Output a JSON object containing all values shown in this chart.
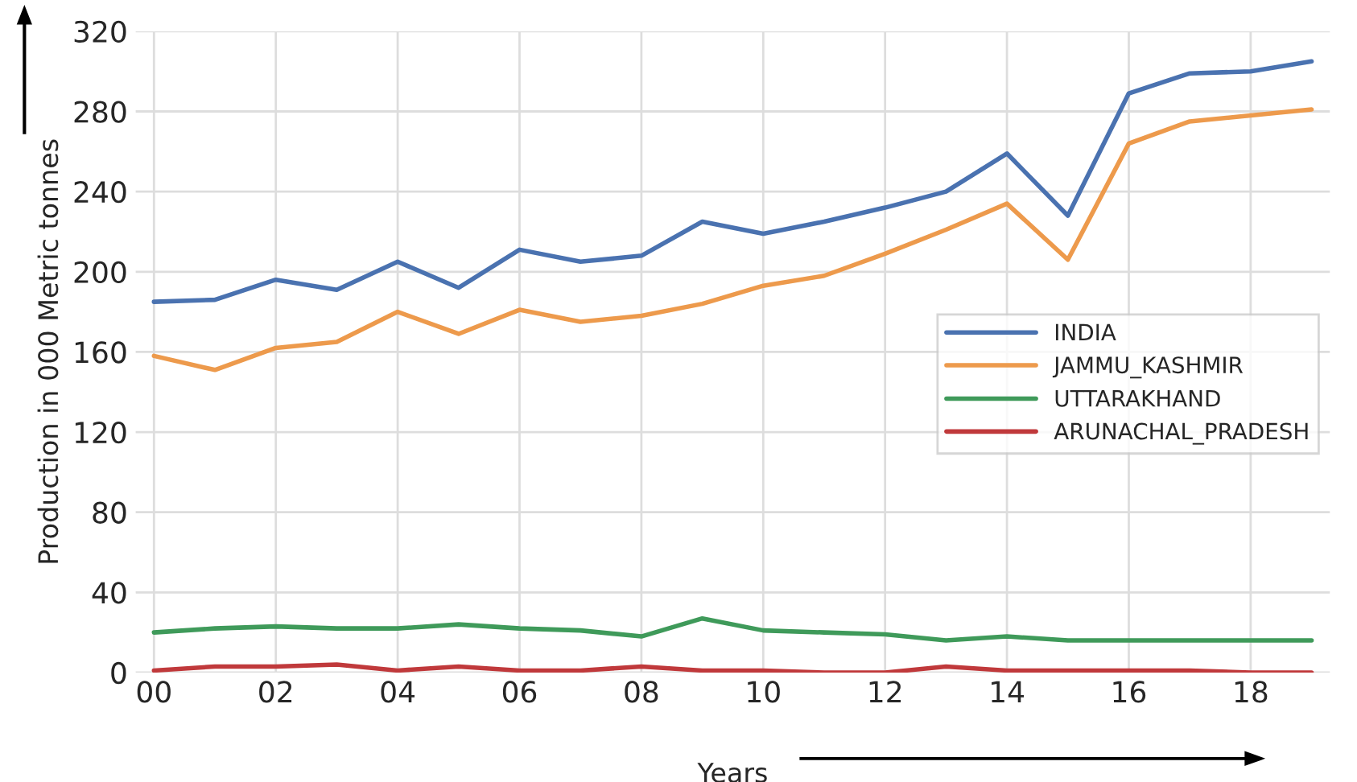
{
  "chart_data": {
    "type": "line",
    "xlabel": "Years",
    "ylabel": "Production in 000 Metric tonnes",
    "x": [
      0,
      1,
      2,
      3,
      4,
      5,
      6,
      7,
      8,
      9,
      10,
      11,
      12,
      13,
      14,
      15,
      16,
      17,
      18,
      19
    ],
    "series": [
      {
        "name": "INDIA",
        "color": "#4a72b0",
        "values": [
          185,
          186,
          196,
          191,
          205,
          192,
          211,
          205,
          208,
          225,
          219,
          225,
          232,
          240,
          259,
          228,
          289,
          299,
          300,
          305
        ]
      },
      {
        "name": "JAMMU_KASHMIR",
        "color": "#ed9a4c",
        "values": [
          158,
          151,
          162,
          165,
          180,
          169,
          181,
          175,
          178,
          184,
          193,
          198,
          209,
          221,
          234,
          206,
          264,
          275,
          278,
          281
        ]
      },
      {
        "name": "UTTARAKHAND",
        "color": "#3f9a5a",
        "values": [
          20,
          22,
          23,
          22,
          22,
          24,
          22,
          21,
          18,
          27,
          21,
          20,
          19,
          16,
          18,
          16,
          16,
          16,
          16,
          16
        ]
      },
      {
        "name": "ARUNACHAL_PRADESH",
        "color": "#c0393b",
        "values": [
          1,
          3,
          3,
          4,
          1,
          3,
          1,
          1,
          3,
          1,
          1,
          0,
          0,
          3,
          1,
          1,
          1,
          1,
          0,
          0
        ]
      }
    ],
    "xlim": [
      -0.3,
      19.3
    ],
    "ylim": [
      0,
      320
    ],
    "xticks": [
      {
        "value": 0,
        "label": "00"
      },
      {
        "value": 2,
        "label": "02"
      },
      {
        "value": 4,
        "label": "04"
      },
      {
        "value": 6,
        "label": "06"
      },
      {
        "value": 8,
        "label": "08"
      },
      {
        "value": 10,
        "label": "10"
      },
      {
        "value": 12,
        "label": "12"
      },
      {
        "value": 14,
        "label": "14"
      },
      {
        "value": 16,
        "label": "16"
      },
      {
        "value": 18,
        "label": "18"
      }
    ],
    "yticks": [
      0,
      40,
      80,
      120,
      160,
      200,
      240,
      280,
      320
    ],
    "grid": true,
    "legend": "right",
    "line_style": "solid",
    "marker": "none"
  }
}
